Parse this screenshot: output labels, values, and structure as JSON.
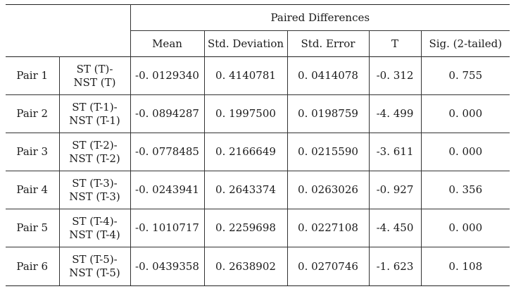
{
  "header": {
    "group_title": "Paired Differences",
    "columns": [
      "Mean",
      "Std.  Deviation",
      "Std.  Error",
      "T",
      "Sig. (2-tailed)"
    ]
  },
  "rows": [
    {
      "pair": "Pair 1",
      "desc_line1": "ST (T)-",
      "desc_line2": "NST (T)",
      "mean": "-0. 0129340",
      "std_dev": "0. 4140781",
      "std_err": "0. 0414078",
      "t": "-0. 312",
      "sig": "0. 755"
    },
    {
      "pair": "Pair 2",
      "desc_line1": "ST (T-1)-",
      "desc_line2": "NST (T-1)",
      "mean": "-0. 0894287",
      "std_dev": "0. 1997500",
      "std_err": "0. 0198759",
      "t": "-4. 499",
      "sig": "0. 000"
    },
    {
      "pair": "Pair 3",
      "desc_line1": "ST (T-2)-",
      "desc_line2": "NST (T-2)",
      "mean": "-0. 0778485",
      "std_dev": "0. 2166649",
      "std_err": "0. 0215590",
      "t": "-3. 611",
      "sig": "0. 000"
    },
    {
      "pair": "Pair 4",
      "desc_line1": "ST (T-3)-",
      "desc_line2": "NST (T-3)",
      "mean": "-0. 0243941",
      "std_dev": "0. 2643374",
      "std_err": "0. 0263026",
      "t": "-0. 927",
      "sig": "0. 356"
    },
    {
      "pair": "Pair 5",
      "desc_line1": "ST (T-4)-",
      "desc_line2": "NST (T-4)",
      "mean": "-0. 1010717",
      "std_dev": "0. 2259698",
      "std_err": "0. 0227108",
      "t": "-4. 450",
      "sig": "0. 000"
    },
    {
      "pair": "Pair 6",
      "desc_line1": "ST (T-5)-",
      "desc_line2": "NST (T-5)",
      "mean": "-0. 0439358",
      "std_dev": "0. 2638902",
      "std_err": "0. 0270746",
      "t": "-1. 623",
      "sig": "0. 108"
    }
  ]
}
